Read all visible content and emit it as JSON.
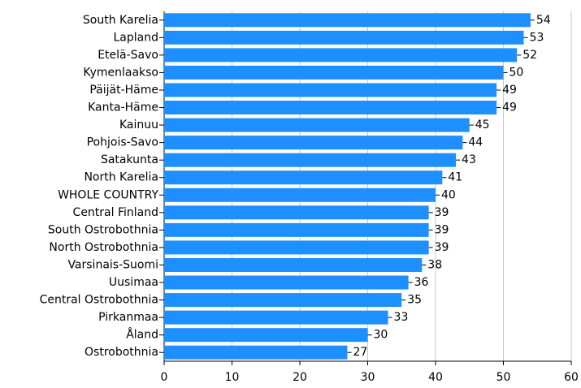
{
  "chart_data": {
    "type": "bar",
    "orientation": "horizontal",
    "categories": [
      "South Karelia",
      "Lapland",
      "Etelä-Savo",
      "Kymenlaakso",
      "Päijät-Häme",
      "Kanta-Häme",
      "Kainuu",
      "Pohjois-Savo",
      "Satakunta",
      "North Karelia",
      "WHOLE COUNTRY",
      "Central Finland",
      "South Ostrobothnia",
      "North Ostrobothnia",
      "Varsinais-Suomi",
      "Uusimaa",
      "Central Ostrobothnia",
      "Pirkanmaa",
      "Åland",
      "Ostrobothnia"
    ],
    "values": [
      54,
      53,
      52,
      50,
      49,
      49,
      45,
      44,
      43,
      41,
      40,
      39,
      39,
      39,
      38,
      36,
      35,
      33,
      30,
      27
    ],
    "color": "#1e8fff",
    "xlim": [
      0,
      60
    ],
    "xticks": [
      0,
      10,
      20,
      30,
      40,
      50,
      60
    ],
    "grid": true
  }
}
